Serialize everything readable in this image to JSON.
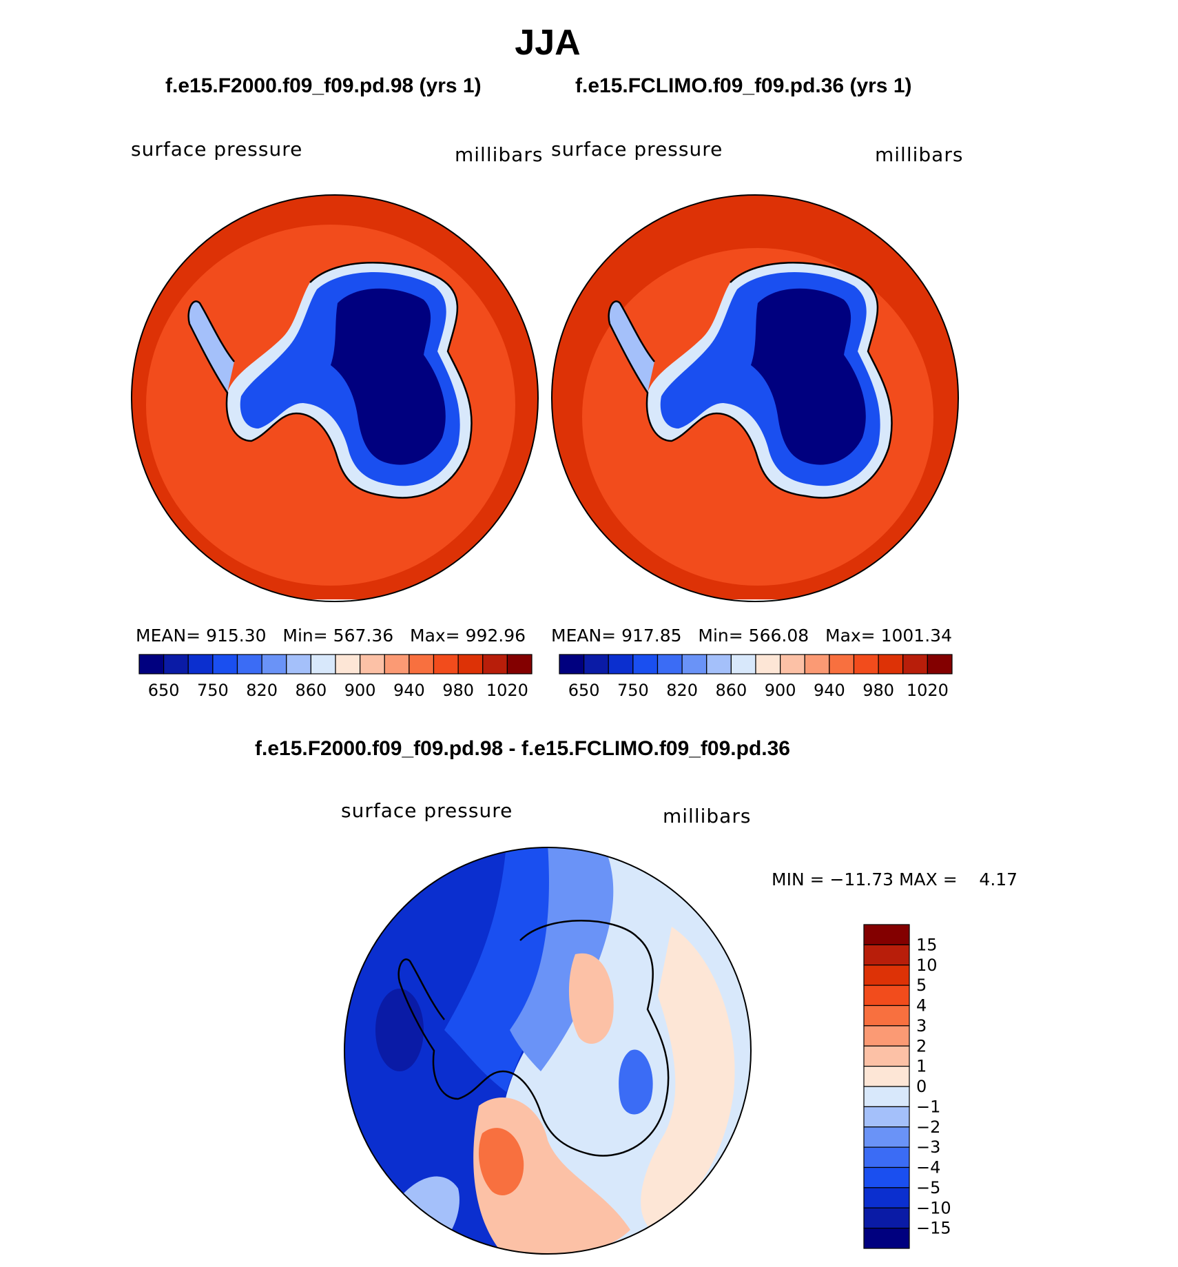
{
  "title": "JJA",
  "panels": [
    {
      "case": "f.e15.F2000.f09_f09.pd.98 (yrs 1)",
      "variable": "surface pressure",
      "units": "millibars",
      "mean_label": "MEAN=",
      "mean": "915.30",
      "min_label": "Min=",
      "min": "567.36",
      "max_label": "Max=",
      "max": "992.96"
    },
    {
      "case": "f.e15.FCLIMO.f09_f09.pd.36 (yrs 1)",
      "variable": "surface pressure",
      "units": "millibars",
      "mean_label": "MEAN=",
      "mean": "917.85",
      "min_label": "Min=",
      "min": "566.08",
      "max_label": "Max=",
      "max": "1001.34"
    }
  ],
  "diff": {
    "title": "f.e15.F2000.f09_f09.pd.98 - f.e15.FCLIMO.f09_f09.pd.36",
    "variable": "surface pressure",
    "units": "millibars",
    "minmax_text": "MIN = −11.73 MAX =    4.17"
  },
  "chart_data": [
    {
      "type": "heatmap",
      "projection": "south-polar-stereographic",
      "title": "f.e15.F2000.f09_f09.pd.98 (yrs 1)",
      "field": "surface pressure",
      "units": "millibars",
      "mean": 915.3,
      "min": 567.36,
      "max": 992.96,
      "colorbar_levels": [
        650,
        700,
        750,
        800,
        820,
        840,
        860,
        880,
        900,
        920,
        940,
        960,
        980,
        1000,
        1020
      ],
      "colorbar_tick_labels": [
        "650",
        "750",
        "820",
        "860",
        "900",
        "940",
        "980",
        "1020"
      ],
      "colors": [
        "#00007f",
        "#0a1ba6",
        "#0b2fcf",
        "#1a4ff0",
        "#3b6cf5",
        "#6a93f7",
        "#a4c0fa",
        "#d8e8fb",
        "#fde6d6",
        "#fcc1a6",
        "#fb9a74",
        "#f8703f",
        "#f24c1c",
        "#dd3206",
        "#b81e0a",
        "#830000"
      ]
    },
    {
      "type": "heatmap",
      "projection": "south-polar-stereographic",
      "title": "f.e15.FCLIMO.f09_f09.pd.36 (yrs 1)",
      "field": "surface pressure",
      "units": "millibars",
      "mean": 917.85,
      "min": 566.08,
      "max": 1001.34,
      "colorbar_levels": [
        650,
        700,
        750,
        800,
        820,
        840,
        860,
        880,
        900,
        920,
        940,
        960,
        980,
        1000,
        1020
      ],
      "colorbar_tick_labels": [
        "650",
        "750",
        "820",
        "860",
        "900",
        "940",
        "980",
        "1020"
      ],
      "colors": [
        "#00007f",
        "#0a1ba6",
        "#0b2fcf",
        "#1a4ff0",
        "#3b6cf5",
        "#6a93f7",
        "#a4c0fa",
        "#d8e8fb",
        "#fde6d6",
        "#fcc1a6",
        "#fb9a74",
        "#f8703f",
        "#f24c1c",
        "#dd3206",
        "#b81e0a",
        "#830000"
      ]
    },
    {
      "type": "heatmap",
      "projection": "south-polar-stereographic",
      "title": "f.e15.F2000.f09_f09.pd.98 - f.e15.FCLIMO.f09_f09.pd.36",
      "field": "surface pressure",
      "units": "millibars",
      "min": -11.73,
      "max": 4.17,
      "colorbar_tick_labels": [
        "15",
        "10",
        "5",
        "4",
        "3",
        "2",
        "1",
        "0",
        "−1",
        "−2",
        "−3",
        "−4",
        "−5",
        "−10",
        "−15"
      ],
      "colors": [
        "#830000",
        "#b81e0a",
        "#dd3206",
        "#f24c1c",
        "#f8703f",
        "#fb9a74",
        "#fcc1a6",
        "#fde6d6",
        "#d8e8fb",
        "#a4c0fa",
        "#6a93f7",
        "#3b6cf5",
        "#1a4ff0",
        "#0b2fcf",
        "#0a1ba6",
        "#00007f"
      ]
    }
  ]
}
